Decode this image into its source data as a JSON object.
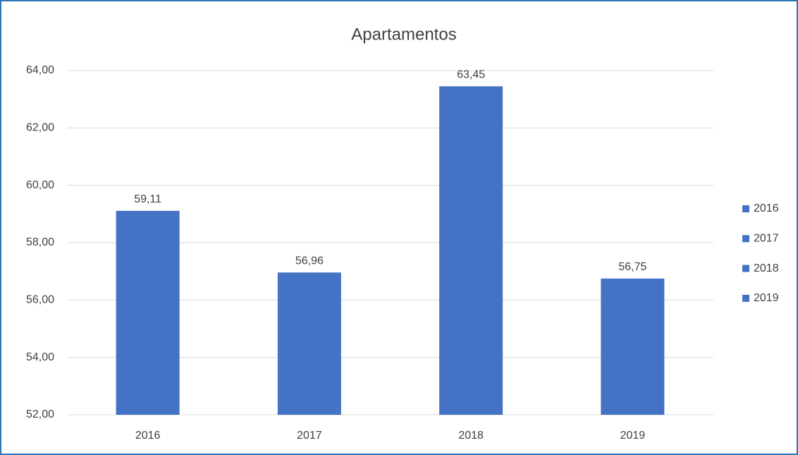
{
  "chart_data": {
    "type": "bar",
    "title": "Apartamentos",
    "categories": [
      "2016",
      "2017",
      "2018",
      "2019"
    ],
    "values": [
      59.11,
      56.96,
      63.45,
      56.75
    ],
    "value_labels": [
      "59,11",
      "56,96",
      "63,45",
      "56,75"
    ],
    "color": "#4472c4",
    "ylim": [
      52,
      64
    ],
    "yticks": [
      {
        "value": 52,
        "label": "52,00"
      },
      {
        "value": 54,
        "label": "54,00"
      },
      {
        "value": 56,
        "label": "56,00"
      },
      {
        "value": 58,
        "label": "58,00"
      },
      {
        "value": 60,
        "label": "60,00"
      },
      {
        "value": 62,
        "label": "62,00"
      },
      {
        "value": 64,
        "label": "64,00"
      }
    ],
    "grid": true,
    "legend": "right"
  }
}
